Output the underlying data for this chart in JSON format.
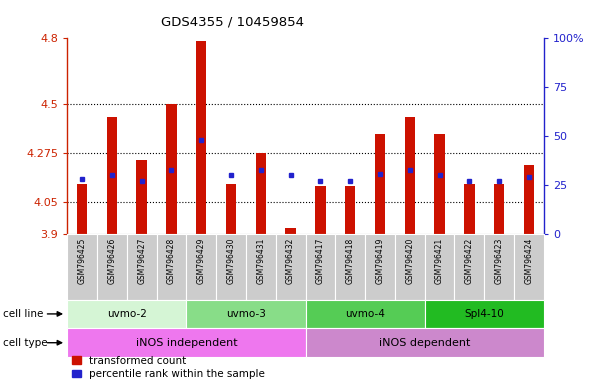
{
  "title": "GDS4355 / 10459854",
  "samples": [
    "GSM796425",
    "GSM796426",
    "GSM796427",
    "GSM796428",
    "GSM796429",
    "GSM796430",
    "GSM796431",
    "GSM796432",
    "GSM796417",
    "GSM796418",
    "GSM796419",
    "GSM796420",
    "GSM796421",
    "GSM796422",
    "GSM796423",
    "GSM796424"
  ],
  "transformed_count": [
    4.13,
    4.44,
    4.24,
    4.5,
    4.79,
    4.13,
    4.275,
    3.93,
    4.12,
    4.12,
    4.36,
    4.44,
    4.36,
    4.13,
    4.13,
    4.22
  ],
  "percentile_right": [
    28,
    30,
    27,
    33,
    48,
    30,
    33,
    30,
    27,
    27,
    31,
    33,
    30,
    27,
    27,
    29
  ],
  "baseline": 3.9,
  "ylim_left": [
    3.9,
    4.8
  ],
  "ylim_right": [
    0,
    100
  ],
  "yticks_left": [
    3.9,
    4.05,
    4.275,
    4.5,
    4.8
  ],
  "yticks_right": [
    0,
    25,
    50,
    75,
    100
  ],
  "ytick_labels_left": [
    "3.9",
    "4.05",
    "4.275",
    "4.5",
    "4.8"
  ],
  "ytick_labels_right": [
    "0",
    "25",
    "50",
    "75",
    "100%"
  ],
  "cell_lines": [
    {
      "label": "uvmo-2",
      "start": 0,
      "end": 4,
      "color": "#d5f5d5"
    },
    {
      "label": "uvmo-3",
      "start": 4,
      "end": 8,
      "color": "#88dd88"
    },
    {
      "label": "uvmo-4",
      "start": 8,
      "end": 12,
      "color": "#55cc55"
    },
    {
      "label": "Spl4-10",
      "start": 12,
      "end": 16,
      "color": "#22bb22"
    }
  ],
  "cell_types": [
    {
      "label": "iNOS independent",
      "start": 0,
      "end": 8,
      "color": "#ee77ee"
    },
    {
      "label": "iNOS dependent",
      "start": 8,
      "end": 16,
      "color": "#cc88cc"
    }
  ],
  "bar_color": "#cc1100",
  "blue_color": "#2222cc",
  "bg_color": "#ffffff",
  "label_bg": "#cccccc",
  "left_axis_color": "#cc2200",
  "right_axis_color": "#2222cc",
  "bar_width": 0.35
}
